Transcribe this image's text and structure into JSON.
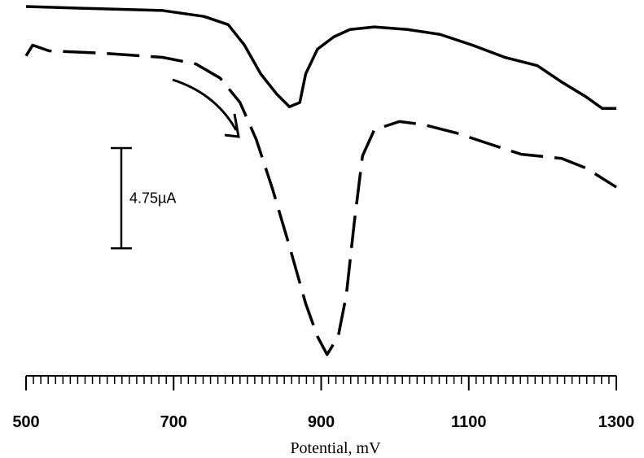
{
  "chart_data": {
    "type": "line",
    "xlabel": "Potential, mV",
    "xlim": [
      500,
      1300
    ],
    "ylim": [
      -17.5,
      0
    ],
    "xticks": [
      500,
      700,
      900,
      1100,
      1300
    ],
    "xminorticks": [
      500,
      510,
      520,
      530,
      540,
      550,
      560,
      570,
      580,
      590,
      600,
      610,
      620,
      630,
      640,
      650,
      660,
      670,
      680,
      690,
      700,
      710,
      720,
      730,
      740,
      750,
      760,
      770,
      780,
      790,
      800,
      810,
      820,
      830,
      840,
      850,
      860,
      870,
      880,
      890,
      900,
      910,
      920,
      930,
      940,
      950,
      960,
      970,
      980,
      990,
      1000,
      1010,
      1020,
      1030,
      1040,
      1050,
      1060,
      1070,
      1080,
      1090,
      1100,
      1110,
      1120,
      1130,
      1140,
      1150,
      1160,
      1170,
      1180,
      1190,
      1200,
      1210,
      1220,
      1230,
      1240,
      1250,
      1260,
      1270,
      1280,
      1290,
      1300
    ],
    "scale_bar": {
      "value": 4.75,
      "label": "4.75µA"
    },
    "series": [
      {
        "color": "#000000",
        "line_style": "solid",
        "x": [
          500,
          575,
          685,
          741,
          774,
          796,
          818,
          840,
          857,
          871,
          879,
          895,
          917,
          939,
          972,
          1017,
          1061,
          1105,
          1149,
          1193,
          1226,
          1259,
          1281,
          1300
        ],
        "values": [
          0,
          -0.08,
          -0.19,
          -0.47,
          -0.86,
          -1.83,
          -3.19,
          -4.16,
          -4.75,
          -4.55,
          -3.19,
          -2.02,
          -1.44,
          -1.09,
          -0.97,
          -1.09,
          -1.32,
          -1.83,
          -2.41,
          -2.8,
          -3.58,
          -4.28,
          -4.83,
          -4.83
        ]
      },
      {
        "color": "#000000",
        "line_style": "dashed",
        "x": [
          500,
          509,
          531,
          608,
          685,
          730,
          763,
          790,
          812,
          834,
          857,
          879,
          895,
          908,
          923,
          934,
          945,
          956,
          972,
          1006,
          1039,
          1083,
          1127,
          1171,
          1193,
          1226,
          1259,
          1300
        ],
        "values": [
          -2.34,
          -1.83,
          -2.1,
          -2.22,
          -2.41,
          -2.72,
          -3.39,
          -4.55,
          -6.3,
          -8.64,
          -11.36,
          -14.08,
          -15.64,
          -16.49,
          -15.64,
          -13.69,
          -10.19,
          -7.08,
          -5.84,
          -5.45,
          -5.6,
          -5.99,
          -6.5,
          -7,
          -7.08,
          -7.2,
          -7.66,
          -8.56
        ]
      }
    ]
  }
}
